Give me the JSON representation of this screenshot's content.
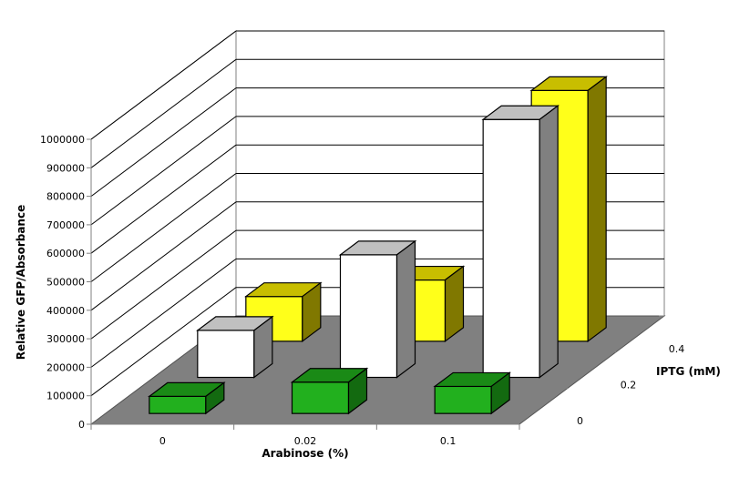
{
  "chart_data": {
    "type": "bar",
    "subtype": "3d-column",
    "title": "",
    "xlabel": "Arabinose (%)",
    "ylabel": "Relative GFP/Absorbance",
    "zlabel": "IPTG (mM)",
    "categories": [
      "0",
      "0.02",
      "0.1"
    ],
    "depth_categories": [
      "0",
      "0.2",
      "0.4"
    ],
    "y_ticks": [
      "0",
      "100000",
      "200000",
      "300000",
      "400000",
      "500000",
      "600000",
      "700000",
      "800000",
      "900000",
      "1000000"
    ],
    "ylim": [
      0,
      1000000
    ],
    "grid": true,
    "legend": null,
    "series": [
      {
        "name": "IPTG 0 mM",
        "depth_index": 0,
        "color": "#22b01e",
        "top_color": "#1a8a16",
        "side_color": "#136a10",
        "values": [
          60000,
          110000,
          95000
        ]
      },
      {
        "name": "IPTG 0.2 mM",
        "depth_index": 1,
        "color": "#ffffff",
        "top_color": "#c0c0c0",
        "side_color": "#808080",
        "values": [
          165000,
          430000,
          905000
        ]
      },
      {
        "name": "IPTG 0.4 mM",
        "depth_index": 2,
        "color": "#ffff1a",
        "top_color": "#c8be00",
        "side_color": "#807800",
        "values": [
          157000,
          215000,
          880000
        ]
      }
    ]
  },
  "colors": {
    "floor": "#808080",
    "wall": "#ffffff",
    "gridline": "#000000",
    "axis": "#808080"
  }
}
